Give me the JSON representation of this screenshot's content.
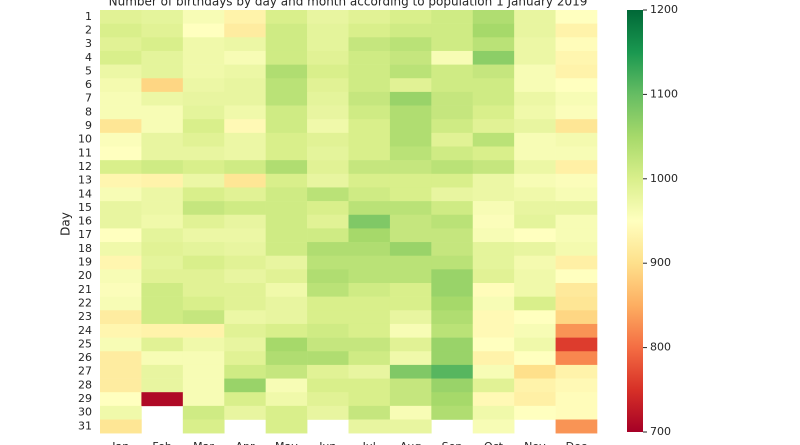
{
  "chart_data": {
    "type": "heatmap",
    "title": "Number of birthdays by day and month according to population 1 January 2019",
    "y_label": "Day",
    "x_categories": [
      "Jan",
      "Feb",
      "Mar",
      "Apr",
      "May",
      "Jun",
      "Jul",
      "Aug",
      "Sep",
      "Oct",
      "Nov",
      "Dec"
    ],
    "y_categories": [
      "1",
      "2",
      "3",
      "4",
      "5",
      "6",
      "7",
      "8",
      "9",
      "10",
      "11",
      "12",
      "13",
      "14",
      "15",
      "16",
      "17",
      "18",
      "19",
      "20",
      "21",
      "22",
      "23",
      "24",
      "25",
      "26",
      "27",
      "28",
      "29",
      "30",
      "31"
    ],
    "values": [
      [
        990,
        985,
        960,
        930,
        1000,
        980,
        990,
        1000,
        1010,
        1040,
        980,
        950
      ],
      [
        1000,
        990,
        950,
        920,
        1010,
        985,
        1000,
        1010,
        1010,
        1050,
        980,
        930
      ],
      [
        990,
        1000,
        970,
        975,
        1010,
        985,
        1020,
        1030,
        1010,
        1030,
        975,
        945
      ],
      [
        1000,
        985,
        970,
        960,
        1010,
        990,
        1010,
        1020,
        960,
        1070,
        975,
        935
      ],
      [
        975,
        985,
        970,
        975,
        1040,
        1000,
        1010,
        1030,
        1010,
        1020,
        960,
        930
      ],
      [
        965,
        890,
        975,
        980,
        1030,
        990,
        1010,
        990,
        1010,
        1010,
        960,
        950
      ],
      [
        960,
        975,
        980,
        980,
        1030,
        985,
        1020,
        1060,
        1020,
        1010,
        975,
        960
      ],
      [
        960,
        960,
        985,
        970,
        1010,
        980,
        1010,
        1040,
        1020,
        1000,
        970,
        955
      ],
      [
        910,
        960,
        1000,
        940,
        1010,
        970,
        1000,
        1040,
        1010,
        990,
        980,
        910
      ],
      [
        955,
        980,
        990,
        975,
        1000,
        990,
        1000,
        1040,
        990,
        1030,
        960,
        965
      ],
      [
        950,
        980,
        980,
        975,
        1000,
        985,
        1000,
        1030,
        1010,
        1000,
        960,
        960
      ],
      [
        1000,
        1010,
        1000,
        1010,
        1040,
        990,
        1020,
        1020,
        1030,
        1020,
        975,
        925
      ],
      [
        935,
        930,
        975,
        910,
        1000,
        980,
        1000,
        1000,
        1000,
        975,
        960,
        955
      ],
      [
        960,
        975,
        1000,
        990,
        1010,
        1030,
        1010,
        1000,
        980,
        975,
        970,
        960
      ],
      [
        980,
        975,
        1020,
        1010,
        1010,
        1000,
        1030,
        1030,
        1010,
        960,
        980,
        980
      ],
      [
        980,
        970,
        990,
        980,
        1010,
        990,
        1080,
        1020,
        1030,
        955,
        985,
        960
      ],
      [
        950,
        985,
        975,
        975,
        1010,
        1010,
        1050,
        1020,
        1020,
        960,
        950,
        960
      ],
      [
        970,
        990,
        985,
        980,
        1010,
        1040,
        1040,
        1060,
        1020,
        985,
        980,
        965
      ],
      [
        935,
        985,
        1000,
        990,
        980,
        1030,
        1030,
        1030,
        1030,
        985,
        965,
        925
      ],
      [
        960,
        990,
        990,
        980,
        990,
        1040,
        1030,
        1030,
        1060,
        990,
        970,
        950
      ],
      [
        955,
        1010,
        990,
        990,
        970,
        1030,
        1010,
        1000,
        1060,
        945,
        970,
        915
      ],
      [
        960,
        1010,
        1000,
        990,
        980,
        1000,
        1000,
        1000,
        1050,
        960,
        1000,
        910
      ],
      [
        920,
        1010,
        1020,
        975,
        980,
        1000,
        1000,
        980,
        1040,
        940,
        950,
        890
      ],
      [
        935,
        930,
        930,
        990,
        1000,
        1010,
        1000,
        960,
        1030,
        940,
        960,
        830
      ],
      [
        960,
        990,
        970,
        980,
        1050,
        1020,
        1020,
        990,
        1060,
        950,
        970,
        760
      ],
      [
        920,
        960,
        960,
        990,
        1040,
        1040,
        1010,
        970,
        1060,
        930,
        950,
        820
      ],
      [
        920,
        980,
        960,
        1010,
        1020,
        990,
        980,
        1080,
        1110,
        960,
        900,
        930
      ],
      [
        920,
        980,
        960,
        1060,
        960,
        1000,
        1000,
        1020,
        1060,
        990,
        930,
        940
      ],
      [
        950,
        710,
        960,
        1000,
        970,
        990,
        1000,
        1020,
        1050,
        940,
        925,
        945
      ],
      [
        970,
        null,
        1010,
        980,
        1000,
        980,
        1020,
        960,
        1040,
        970,
        950,
        945
      ],
      [
        910,
        null,
        1000,
        null,
        1000,
        null,
        980,
        980,
        null,
        960,
        null,
        830
      ]
    ],
    "clim": [
      700,
      1200
    ],
    "cticks": [
      700,
      800,
      900,
      1000,
      1100,
      1200
    ],
    "colormap": "RdYlGn",
    "colors": [
      "#a50026",
      "#d73027",
      "#f46d43",
      "#fdae61",
      "#fee08b",
      "#ffffbf",
      "#d9ef8b",
      "#a6d96a",
      "#66bd63",
      "#1a9850",
      "#006837"
    ]
  }
}
